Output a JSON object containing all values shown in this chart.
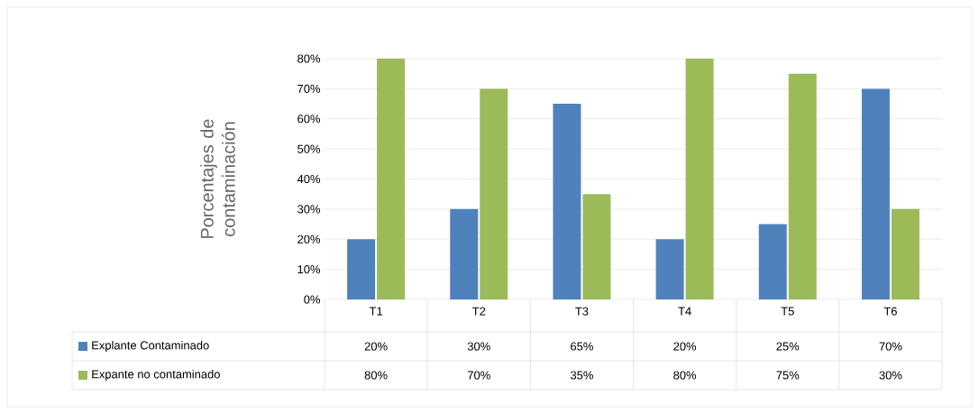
{
  "chart_data": {
    "type": "bar",
    "ylabel": "Porcentajes de contaminación",
    "categories": [
      "T1",
      "T2",
      "T3",
      "T4",
      "T5",
      "T6"
    ],
    "series": [
      {
        "name": "Explante Contaminado",
        "color": "#4f81bd",
        "values": [
          20,
          30,
          65,
          20,
          25,
          70
        ],
        "value_labels": [
          "20%",
          "30%",
          "65%",
          "20%",
          "25%",
          "70%"
        ]
      },
      {
        "name": "Expante no contaminado",
        "color": "#9bbb59",
        "values": [
          80,
          70,
          35,
          80,
          75,
          30
        ],
        "value_labels": [
          "80%",
          "70%",
          "35%",
          "80%",
          "75%",
          "30%"
        ]
      }
    ],
    "ylim": [
      0,
      80
    ],
    "yticks": [
      {
        "value": 0,
        "label": "0%"
      },
      {
        "value": 10,
        "label": "10%"
      },
      {
        "value": 20,
        "label": "20%"
      },
      {
        "value": 30,
        "label": "30%"
      },
      {
        "value": 40,
        "label": "40%"
      },
      {
        "value": 50,
        "label": "50%"
      },
      {
        "value": 60,
        "label": "60%"
      },
      {
        "value": 70,
        "label": "70%"
      },
      {
        "value": 80,
        "label": "80%"
      }
    ],
    "grid": "y",
    "legend": "bottom"
  }
}
